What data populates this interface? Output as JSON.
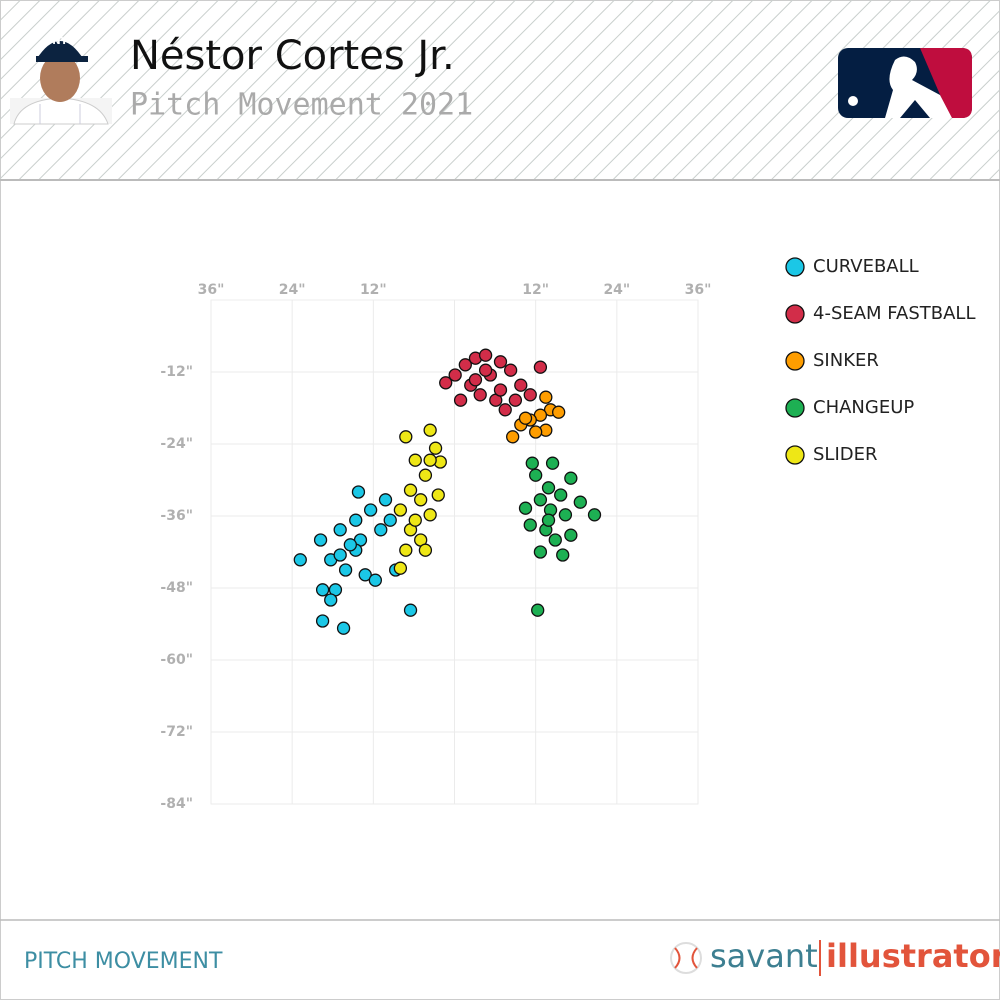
{
  "header": {
    "title": "Néstor Cortes Jr.",
    "subtitle": "Pitch Movement 2021"
  },
  "footer": {
    "label": "PITCH MOVEMENT",
    "brand": "savant",
    "brand_suffix": "illustrator"
  },
  "chart_data": {
    "type": "scatter",
    "xlim": [
      -36,
      36
    ],
    "ylim": [
      -84,
      0
    ],
    "xticks": [
      {
        "value": -36,
        "label": "36\""
      },
      {
        "value": -24,
        "label": "24\""
      },
      {
        "value": -12,
        "label": "12\""
      },
      {
        "value": 12,
        "label": "12\""
      },
      {
        "value": 24,
        "label": "24\""
      },
      {
        "value": 36,
        "label": "36\""
      }
    ],
    "yticks": [
      {
        "value": -12,
        "label": "-12\""
      },
      {
        "value": -24,
        "label": "-24\""
      },
      {
        "value": -36,
        "label": "-36\""
      },
      {
        "value": -48,
        "label": "-48\""
      },
      {
        "value": -60,
        "label": "-60\""
      },
      {
        "value": -72,
        "label": "-72\""
      },
      {
        "value": -84,
        "label": "-84\""
      }
    ],
    "grid": true,
    "series": [
      {
        "name": "CURVEBALL",
        "color": "#1bc7e6",
        "x": [
          -22.8,
          -19.8,
          -18.3,
          -16.9,
          -14.6,
          -13.9,
          -12.4,
          -10.2,
          -10.9,
          -16.1,
          -17.6,
          -19.5,
          -18.3,
          -19.5,
          -16.4,
          -14.6,
          -13.2,
          -11.7,
          -8.7,
          -6.5,
          -14.2,
          -9.5,
          -15.4,
          -16.9
        ],
        "values": [
          -43.3,
          -40,
          -43.3,
          -38.3,
          -36.7,
          -40,
          -35,
          -33.3,
          -38.3,
          -45,
          -48.3,
          -48.3,
          -50,
          -53.5,
          -54.7,
          -41.7,
          -45.8,
          -46.7,
          -45,
          -51.7,
          -32,
          -36.7,
          -40.8,
          -42.5
        ]
      },
      {
        "name": "4-SEAM FASTBALL",
        "color": "#d22d49",
        "x": [
          -1.3,
          0.1,
          1.6,
          3.1,
          4.6,
          6.8,
          8.3,
          9.8,
          11.2,
          12.7,
          6.1,
          3.8,
          2.4,
          0.9,
          7.5,
          5.3,
          9.0,
          6.8,
          4.6,
          3.1
        ],
        "values": [
          -13.8,
          -12.5,
          -10.8,
          -9.7,
          -9.2,
          -10.3,
          -11.7,
          -14.2,
          -15.8,
          -11.2,
          -16.7,
          -15.8,
          -14.2,
          -16.7,
          -18.3,
          -12.5,
          -16.7,
          -15,
          -11.7,
          -13.3
        ]
      },
      {
        "name": "SINKER",
        "color": "#fe9d00",
        "x": [
          13.5,
          14.2,
          15.4,
          12.7,
          11.2,
          9.8,
          8.6,
          13.5,
          12.0,
          10.5
        ],
        "values": [
          -16.2,
          -18.3,
          -18.7,
          -19.2,
          -20,
          -20.8,
          -22.8,
          -21.7,
          -22,
          -19.7
        ]
      },
      {
        "name": "CHANGEUP",
        "color": "#1db053",
        "x": [
          11.5,
          14.5,
          12.0,
          17.2,
          13.9,
          15.7,
          12.7,
          18.6,
          10.5,
          14.2,
          16.4,
          20.7,
          11.2,
          13.5,
          17.2,
          14.9,
          12.7,
          16.0,
          12.3,
          13.9
        ],
        "values": [
          -27.2,
          -27.2,
          -29.2,
          -29.7,
          -31.3,
          -32.5,
          -33.3,
          -33.7,
          -34.7,
          -35,
          -35.8,
          -35.8,
          -37.5,
          -38.3,
          -39.2,
          -40,
          -42,
          -42.5,
          -51.7,
          -36.7
        ]
      },
      {
        "name": "SLIDER",
        "color": "#eee716",
        "x": [
          -7.2,
          -3.6,
          -2.8,
          -2.1,
          -5.8,
          -4.3,
          -6.5,
          -2.4,
          -5.0,
          -8.0,
          -3.6,
          -6.5,
          -5.0,
          -7.2,
          -4.3,
          -8.0,
          -3.6,
          -5.8
        ],
        "values": [
          -22.8,
          -21.7,
          -24.7,
          -27,
          -26.7,
          -29.2,
          -31.7,
          -32.5,
          -33.3,
          -35,
          -35.8,
          -38.3,
          -40,
          -41.7,
          -41.7,
          -44.7,
          -26.7,
          -36.7
        ]
      }
    ]
  }
}
